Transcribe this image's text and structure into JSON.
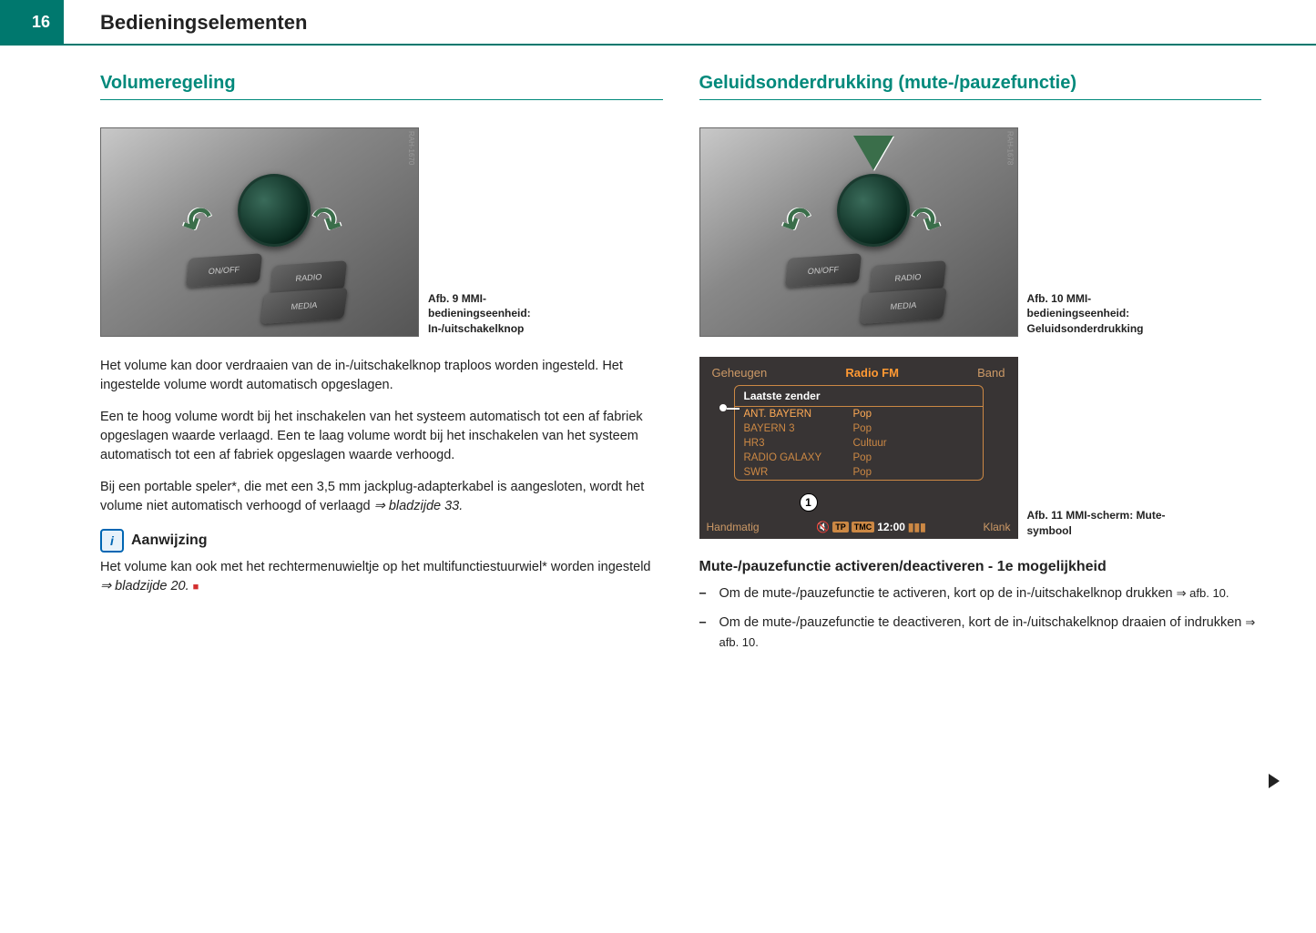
{
  "page_number": "16",
  "header_title": "Bedieningselementen",
  "left": {
    "section_title": "Volumeregeling",
    "fig9": {
      "label": "RAH-1670",
      "btn1": "ON/OFF",
      "btn2": "RADIO",
      "btn3": "MEDIA",
      "caption_bold": "Afb. 9",
      "caption_rest": "MMI-bedieningseenheid: In-/uitschakelknop"
    },
    "p1": "Het volume kan door verdraaien van de in-/uitschakelknop traploos worden ingesteld. Het ingestelde volume wordt automatisch opgeslagen.",
    "p2": "Een te hoog volume wordt bij het inschakelen van het systeem automatisch tot een af fabriek opgeslagen waarde verlaagd. Een te laag volume wordt bij het inschakelen van het systeem automatisch tot een af fabriek opgeslagen waarde verhoogd.",
    "p3a": "Bij een portable speler*, die met een 3,5 mm jackplug-adapterkabel is aangesloten, wordt het volume niet automatisch verhoogd of verlaagd ",
    "p3b": "⇒ bladzijde 33.",
    "note_label": "Aanwijzing",
    "note_text_a": "Het volume kan ook met het rechtermenuwieltje op het multifunctiestuurwiel* worden ingesteld ",
    "note_text_b": "⇒ bladzijde 20.",
    "square": "■"
  },
  "right": {
    "section_title": "Geluidsonderdrukking (mute-/pauzefunctie)",
    "fig10": {
      "label": "RAH-1678",
      "btn1": "ON/OFF",
      "btn2": "RADIO",
      "btn3": "MEDIA",
      "caption_bold": "Afb. 10",
      "caption_rest": "MMI-bedieningseenheid: Geluidsonderdrukking"
    },
    "fig11": {
      "top_left": "Geheugen",
      "top_center": "Radio FM",
      "top_right": "Band",
      "header": "Laatste zender",
      "rows": [
        {
          "station": "ANT. BAYERN",
          "genre": "Pop"
        },
        {
          "station": "BAYERN 3",
          "genre": "Pop"
        },
        {
          "station": "HR3",
          "genre": "Cultuur"
        },
        {
          "station": "RADIO GALAXY",
          "genre": "Pop"
        },
        {
          "station": "SWR",
          "genre": "Pop"
        }
      ],
      "bottom_left": "Handmatig",
      "tp": "TP",
      "tmc": "TMC",
      "time": "12:00",
      "bottom_right": "Klank",
      "marker": "1",
      "caption_bold": "Afb. 11",
      "caption_rest": "MMI-scherm: Mute-symbool"
    },
    "subsection": "Mute-/pauzefunctie activeren/deactiveren - 1e mogelijkheid",
    "li1a": "Om de mute-/pauzefunctie te activeren, kort op de in-/uitschakelknop drukken ",
    "li1b": "⇒ afb. 10.",
    "li2a": "Om de mute-/pauzefunctie te deactiveren, kort de in-/uitschakelknop draaien of indrukken ",
    "li2b": "⇒ afb. 10."
  }
}
